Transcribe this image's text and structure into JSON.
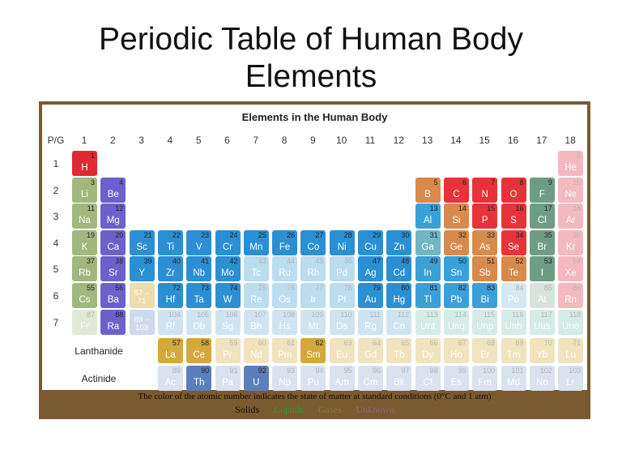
{
  "slide": {
    "title_line1": "Periodic Table of Human Body",
    "title_line2": "Elements"
  },
  "table": {
    "title": "Elements in the Human Body",
    "corner_label": "P/G",
    "groups": [
      "1",
      "2",
      "3",
      "4",
      "5",
      "6",
      "7",
      "8",
      "9",
      "10",
      "11",
      "12",
      "13",
      "14",
      "15",
      "16",
      "17",
      "18"
    ],
    "periods": [
      "1",
      "2",
      "3",
      "4",
      "5",
      "6",
      "7"
    ],
    "lanthanide_label": "Lanthanide",
    "actinide_label": "Actinide",
    "la_series_label": "57 – 71",
    "ac_series_label": "89 – 103",
    "colors": {
      "alkali": "#e8323a",
      "alkali_metal": "#9db27a",
      "alkaline": "#7a6ad0",
      "transition": "#2b8fd4",
      "post_transition": "#4aa7dc",
      "metalloid": "#d58a4e",
      "nonmetal": "#e8323a",
      "halogen": "#6ba07a",
      "noble": "#f2a7ae",
      "lanthanide": "#d4a83a",
      "actinide": "#5b7fbd"
    },
    "elements": [
      {
        "n": "1",
        "s": "H",
        "p": 1,
        "g": 1,
        "c": "#e02a33",
        "f": false
      },
      {
        "n": "2",
        "s": "He",
        "p": 1,
        "g": 18,
        "c": "#f4b9bf",
        "f": true
      },
      {
        "n": "3",
        "s": "Li",
        "p": 2,
        "g": 1,
        "c": "#a1b87c",
        "f": false
      },
      {
        "n": "4",
        "s": "Be",
        "p": 2,
        "g": 2,
        "c": "#6e60cc",
        "f": false
      },
      {
        "n": "5",
        "s": "B",
        "p": 2,
        "g": 13,
        "c": "#d88a4c",
        "f": false
      },
      {
        "n": "6",
        "s": "C",
        "p": 2,
        "g": 14,
        "c": "#e8323a",
        "f": false
      },
      {
        "n": "7",
        "s": "N",
        "p": 2,
        "g": 15,
        "c": "#e8323a",
        "f": false
      },
      {
        "n": "8",
        "s": "O",
        "p": 2,
        "g": 16,
        "c": "#e8323a",
        "f": false
      },
      {
        "n": "9",
        "s": "F",
        "p": 2,
        "g": 17,
        "c": "#6f9d84",
        "f": false
      },
      {
        "n": "10",
        "s": "Ne",
        "p": 2,
        "g": 18,
        "c": "#f4b9bf",
        "f": true
      },
      {
        "n": "11",
        "s": "Na",
        "p": 3,
        "g": 1,
        "c": "#a1b87c",
        "f": false
      },
      {
        "n": "12",
        "s": "Mg",
        "p": 3,
        "g": 2,
        "c": "#6e60cc",
        "f": false
      },
      {
        "n": "13",
        "s": "Al",
        "p": 3,
        "g": 13,
        "c": "#3aa0d8",
        "f": false
      },
      {
        "n": "14",
        "s": "Si",
        "p": 3,
        "g": 14,
        "c": "#d88a4c",
        "f": false
      },
      {
        "n": "15",
        "s": "P",
        "p": 3,
        "g": 15,
        "c": "#e8323a",
        "f": false
      },
      {
        "n": "16",
        "s": "S",
        "p": 3,
        "g": 16,
        "c": "#e8323a",
        "f": false
      },
      {
        "n": "17",
        "s": "Cl",
        "p": 3,
        "g": 17,
        "c": "#6f9d84",
        "f": false
      },
      {
        "n": "18",
        "s": "Ar",
        "p": 3,
        "g": 18,
        "c": "#f4b9bf",
        "f": true
      },
      {
        "n": "19",
        "s": "K",
        "p": 4,
        "g": 1,
        "c": "#a1b87c",
        "f": false
      },
      {
        "n": "20",
        "s": "Ca",
        "p": 4,
        "g": 2,
        "c": "#6e60cc",
        "f": false
      },
      {
        "n": "21",
        "s": "Sc",
        "p": 4,
        "g": 3,
        "c": "#2b8fd4",
        "f": false
      },
      {
        "n": "22",
        "s": "Ti",
        "p": 4,
        "g": 4,
        "c": "#2b8fd4",
        "f": false
      },
      {
        "n": "23",
        "s": "V",
        "p": 4,
        "g": 5,
        "c": "#2b8fd4",
        "f": false
      },
      {
        "n": "24",
        "s": "Cr",
        "p": 4,
        "g": 6,
        "c": "#2b8fd4",
        "f": false
      },
      {
        "n": "25",
        "s": "Mn",
        "p": 4,
        "g": 7,
        "c": "#2b8fd4",
        "f": false
      },
      {
        "n": "26",
        "s": "Fe",
        "p": 4,
        "g": 8,
        "c": "#2b8fd4",
        "f": false
      },
      {
        "n": "27",
        "s": "Co",
        "p": 4,
        "g": 9,
        "c": "#2b8fd4",
        "f": false
      },
      {
        "n": "28",
        "s": "Ni",
        "p": 4,
        "g": 10,
        "c": "#2b8fd4",
        "f": false
      },
      {
        "n": "29",
        "s": "Cu",
        "p": 4,
        "g": 11,
        "c": "#2b8fd4",
        "f": false
      },
      {
        "n": "30",
        "s": "Zn",
        "p": 4,
        "g": 12,
        "c": "#2b8fd4",
        "f": false
      },
      {
        "n": "31",
        "s": "Ga",
        "p": 4,
        "g": 13,
        "c": "#6fb6c6",
        "f": false
      },
      {
        "n": "32",
        "s": "Ge",
        "p": 4,
        "g": 14,
        "c": "#d88a4c",
        "f": false
      },
      {
        "n": "33",
        "s": "As",
        "p": 4,
        "g": 15,
        "c": "#d88a4c",
        "f": false
      },
      {
        "n": "34",
        "s": "Se",
        "p": 4,
        "g": 16,
        "c": "#e8323a",
        "f": false
      },
      {
        "n": "35",
        "s": "Br",
        "p": 4,
        "g": 17,
        "c": "#6f9d84",
        "f": false
      },
      {
        "n": "36",
        "s": "Kr",
        "p": 4,
        "g": 18,
        "c": "#f4b9bf",
        "f": true
      },
      {
        "n": "37",
        "s": "Rb",
        "p": 5,
        "g": 1,
        "c": "#a1b87c",
        "f": false
      },
      {
        "n": "38",
        "s": "Sr",
        "p": 5,
        "g": 2,
        "c": "#6e60cc",
        "f": false
      },
      {
        "n": "39",
        "s": "Y",
        "p": 5,
        "g": 3,
        "c": "#2b8fd4",
        "f": false
      },
      {
        "n": "40",
        "s": "Zr",
        "p": 5,
        "g": 4,
        "c": "#2b8fd4",
        "f": false
      },
      {
        "n": "41",
        "s": "Nb",
        "p": 5,
        "g": 5,
        "c": "#2b8fd4",
        "f": false
      },
      {
        "n": "42",
        "s": "Mo",
        "p": 5,
        "g": 6,
        "c": "#2b8fd4",
        "f": false
      },
      {
        "n": "43",
        "s": "Tc",
        "p": 5,
        "g": 7,
        "c": "#bcdcf0",
        "f": true
      },
      {
        "n": "44",
        "s": "Ru",
        "p": 5,
        "g": 8,
        "c": "#bcdcf0",
        "f": true
      },
      {
        "n": "45",
        "s": "Rh",
        "p": 5,
        "g": 9,
        "c": "#bcdcf0",
        "f": true
      },
      {
        "n": "46",
        "s": "Pd",
        "p": 5,
        "g": 10,
        "c": "#bcdcf0",
        "f": true
      },
      {
        "n": "47",
        "s": "Ag",
        "p": 5,
        "g": 11,
        "c": "#2b8fd4",
        "f": false
      },
      {
        "n": "48",
        "s": "Cd",
        "p": 5,
        "g": 12,
        "c": "#2b8fd4",
        "f": false
      },
      {
        "n": "49",
        "s": "In",
        "p": 5,
        "g": 13,
        "c": "#3aa0d8",
        "f": false
      },
      {
        "n": "50",
        "s": "Sn",
        "p": 5,
        "g": 14,
        "c": "#3aa0d8",
        "f": false
      },
      {
        "n": "51",
        "s": "Sb",
        "p": 5,
        "g": 15,
        "c": "#d88a4c",
        "f": false
      },
      {
        "n": "52",
        "s": "Te",
        "p": 5,
        "g": 16,
        "c": "#d88a4c",
        "f": false
      },
      {
        "n": "53",
        "s": "I",
        "p": 5,
        "g": 17,
        "c": "#6f9d84",
        "f": false
      },
      {
        "n": "54",
        "s": "Xe",
        "p": 5,
        "g": 18,
        "c": "#f4b9bf",
        "f": true
      },
      {
        "n": "55",
        "s": "Cs",
        "p": 6,
        "g": 1,
        "c": "#a1b87c",
        "f": false
      },
      {
        "n": "56",
        "s": "Ba",
        "p": 6,
        "g": 2,
        "c": "#6e60cc",
        "f": false
      },
      {
        "n": "72",
        "s": "Hf",
        "p": 6,
        "g": 4,
        "c": "#2b8fd4",
        "f": false
      },
      {
        "n": "73",
        "s": "Ta",
        "p": 6,
        "g": 5,
        "c": "#2b8fd4",
        "f": false
      },
      {
        "n": "74",
        "s": "W",
        "p": 6,
        "g": 6,
        "c": "#2b8fd4",
        "f": false
      },
      {
        "n": "75",
        "s": "Re",
        "p": 6,
        "g": 7,
        "c": "#bcdcf0",
        "f": true
      },
      {
        "n": "76",
        "s": "Os",
        "p": 6,
        "g": 8,
        "c": "#bcdcf0",
        "f": true
      },
      {
        "n": "77",
        "s": "Ir",
        "p": 6,
        "g": 9,
        "c": "#bcdcf0",
        "f": true
      },
      {
        "n": "78",
        "s": "Pt",
        "p": 6,
        "g": 10,
        "c": "#bcdcf0",
        "f": true
      },
      {
        "n": "79",
        "s": "Au",
        "p": 6,
        "g": 11,
        "c": "#2b8fd4",
        "f": false
      },
      {
        "n": "80",
        "s": "Hg",
        "p": 6,
        "g": 12,
        "c": "#2b8fd4",
        "f": false
      },
      {
        "n": "81",
        "s": "Tl",
        "p": 6,
        "g": 13,
        "c": "#3aa0d8",
        "f": false
      },
      {
        "n": "82",
        "s": "Pb",
        "p": 6,
        "g": 14,
        "c": "#3aa0d8",
        "f": false
      },
      {
        "n": "83",
        "s": "Bi",
        "p": 6,
        "g": 15,
        "c": "#3aa0d8",
        "f": false
      },
      {
        "n": "84",
        "s": "Po",
        "p": 6,
        "g": 16,
        "c": "#d6e9f3",
        "f": true
      },
      {
        "n": "85",
        "s": "At",
        "p": 6,
        "g": 17,
        "c": "#d7e3dc",
        "f": true
      },
      {
        "n": "86",
        "s": "Rn",
        "p": 6,
        "g": 18,
        "c": "#f4b9bf",
        "f": true
      },
      {
        "n": "87",
        "s": "Fr",
        "p": 7,
        "g": 1,
        "c": "#e2e8d6",
        "f": true
      },
      {
        "n": "88",
        "s": "Ra",
        "p": 7,
        "g": 2,
        "c": "#6e60cc",
        "f": false
      },
      {
        "n": "104",
        "s": "Rf",
        "p": 7,
        "g": 4,
        "c": "#cfe4f3",
        "f": true
      },
      {
        "n": "105",
        "s": "Db",
        "p": 7,
        "g": 5,
        "c": "#cfe4f3",
        "f": true
      },
      {
        "n": "106",
        "s": "Sg",
        "p": 7,
        "g": 6,
        "c": "#cfe4f3",
        "f": true
      },
      {
        "n": "107",
        "s": "Bh",
        "p": 7,
        "g": 7,
        "c": "#cfe4f3",
        "f": true
      },
      {
        "n": "108",
        "s": "Hs",
        "p": 7,
        "g": 8,
        "c": "#cfe4f3",
        "f": true
      },
      {
        "n": "109",
        "s": "Mt",
        "p": 7,
        "g": 9,
        "c": "#cfe4f3",
        "f": true
      },
      {
        "n": "110",
        "s": "Ds",
        "p": 7,
        "g": 10,
        "c": "#cfe4f3",
        "f": true
      },
      {
        "n": "111",
        "s": "Rg",
        "p": 7,
        "g": 11,
        "c": "#cfe4f3",
        "f": true
      },
      {
        "n": "112",
        "s": "Cn",
        "p": 7,
        "g": 12,
        "c": "#cfe4f3",
        "f": true
      },
      {
        "n": "113",
        "s": "Unt",
        "p": 7,
        "g": 13,
        "c": "#d4ece6",
        "f": true
      },
      {
        "n": "114",
        "s": "Unq",
        "p": 7,
        "g": 14,
        "c": "#d4ece6",
        "f": true
      },
      {
        "n": "115",
        "s": "Unp",
        "p": 7,
        "g": 15,
        "c": "#d4ece6",
        "f": true
      },
      {
        "n": "116",
        "s": "Unh",
        "p": 7,
        "g": 16,
        "c": "#d4ece6",
        "f": true
      },
      {
        "n": "117",
        "s": "Uus",
        "p": 7,
        "g": 17,
        "c": "#d4ece6",
        "f": true
      },
      {
        "n": "118",
        "s": "Uno",
        "p": 7,
        "g": 18,
        "c": "#d4ece6",
        "f": true
      }
    ],
    "lanthanides": [
      {
        "n": "57",
        "s": "La",
        "c": "#d4a83a",
        "f": false
      },
      {
        "n": "58",
        "s": "Ce",
        "c": "#d4a83a",
        "f": false
      },
      {
        "n": "59",
        "s": "Pr",
        "c": "#f0e3bd",
        "f": true
      },
      {
        "n": "60",
        "s": "Nd",
        "c": "#f0e3bd",
        "f": true
      },
      {
        "n": "61",
        "s": "Pm",
        "c": "#f0e3bd",
        "f": true
      },
      {
        "n": "62",
        "s": "Sm",
        "c": "#d4a83a",
        "f": false
      },
      {
        "n": "63",
        "s": "Eu",
        "c": "#f0e3bd",
        "f": true
      },
      {
        "n": "64",
        "s": "Gd",
        "c": "#f0e3bd",
        "f": true
      },
      {
        "n": "65",
        "s": "Tb",
        "c": "#f0e3bd",
        "f": true
      },
      {
        "n": "66",
        "s": "Dy",
        "c": "#f0e3bd",
        "f": true
      },
      {
        "n": "67",
        "s": "Ho",
        "c": "#f0e3bd",
        "f": true
      },
      {
        "n": "68",
        "s": "Er",
        "c": "#f0e3bd",
        "f": true
      },
      {
        "n": "69",
        "s": "Tm",
        "c": "#f0e3bd",
        "f": true
      },
      {
        "n": "70",
        "s": "Yb",
        "c": "#f0e3bd",
        "f": true
      },
      {
        "n": "71",
        "s": "Lu",
        "c": "#f0e3bd",
        "f": true
      }
    ],
    "actinides": [
      {
        "n": "89",
        "s": "Ac",
        "c": "#d8e2f0",
        "f": true
      },
      {
        "n": "90",
        "s": "Th",
        "c": "#5b7fbd",
        "f": false
      },
      {
        "n": "91",
        "s": "Pa",
        "c": "#d8e2f0",
        "f": true
      },
      {
        "n": "92",
        "s": "U",
        "c": "#5b7fbd",
        "f": false
      },
      {
        "n": "93",
        "s": "Np",
        "c": "#d8e2f0",
        "f": true
      },
      {
        "n": "94",
        "s": "Pu",
        "c": "#d8e2f0",
        "f": true
      },
      {
        "n": "95",
        "s": "Am",
        "c": "#d8e2f0",
        "f": true
      },
      {
        "n": "96",
        "s": "Cm",
        "c": "#d8e2f0",
        "f": true
      },
      {
        "n": "97",
        "s": "Bk",
        "c": "#d8e2f0",
        "f": true
      },
      {
        "n": "98",
        "s": "Cf",
        "c": "#d8e2f0",
        "f": true
      },
      {
        "n": "99",
        "s": "Es",
        "c": "#d8e2f0",
        "f": true
      },
      {
        "n": "100",
        "s": "Fm",
        "c": "#d8e2f0",
        "f": true
      },
      {
        "n": "101",
        "s": "Md",
        "c": "#d8e2f0",
        "f": true
      },
      {
        "n": "102",
        "s": "No",
        "c": "#d8e2f0",
        "f": true
      },
      {
        "n": "103",
        "s": "Lr",
        "c": "#d8e2f0",
        "f": true
      }
    ]
  },
  "footer": {
    "note": "The color of the atomic number indicates the state of matter at standard conditions (0°C and 1 atm)",
    "legend": [
      {
        "label": "Solids",
        "color": "#111111"
      },
      {
        "label": "Liquids",
        "color": "#2e9a2e"
      },
      {
        "label": "Gases",
        "color": "#8a7a3a"
      },
      {
        "label": "Unknown",
        "color": "#a0607a"
      }
    ]
  }
}
